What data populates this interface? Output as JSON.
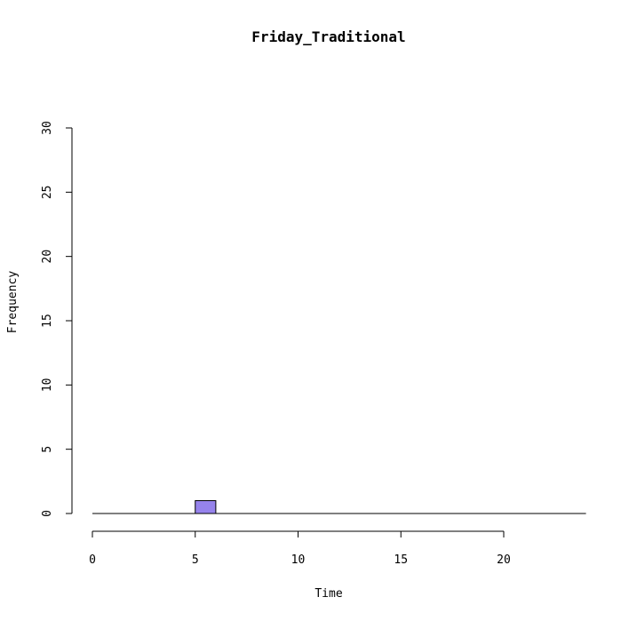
{
  "chart_data": {
    "type": "bar",
    "title": "Friday_Traditional",
    "xlabel": "Time",
    "ylabel": "Frequency",
    "xlim": [
      0,
      24
    ],
    "ylim": [
      0,
      30
    ],
    "x_ticks": [
      0,
      5,
      10,
      15,
      20
    ],
    "y_ticks": [
      0,
      5,
      10,
      15,
      20,
      25,
      30
    ],
    "bin_width": 1,
    "bins": [
      {
        "start": 0,
        "end": 1,
        "count": 0
      },
      {
        "start": 1,
        "end": 2,
        "count": 0
      },
      {
        "start": 2,
        "end": 3,
        "count": 0
      },
      {
        "start": 3,
        "end": 4,
        "count": 0
      },
      {
        "start": 4,
        "end": 5,
        "count": 0
      },
      {
        "start": 5,
        "end": 6,
        "count": 1
      },
      {
        "start": 6,
        "end": 7,
        "count": 0
      },
      {
        "start": 7,
        "end": 8,
        "count": 0
      },
      {
        "start": 8,
        "end": 9,
        "count": 0
      },
      {
        "start": 9,
        "end": 10,
        "count": 0
      },
      {
        "start": 10,
        "end": 11,
        "count": 0
      },
      {
        "start": 11,
        "end": 12,
        "count": 0
      },
      {
        "start": 12,
        "end": 13,
        "count": 0
      },
      {
        "start": 13,
        "end": 14,
        "count": 0
      },
      {
        "start": 14,
        "end": 15,
        "count": 0
      },
      {
        "start": 15,
        "end": 16,
        "count": 0
      },
      {
        "start": 16,
        "end": 17,
        "count": 0
      },
      {
        "start": 17,
        "end": 18,
        "count": 0
      },
      {
        "start": 18,
        "end": 19,
        "count": 0
      },
      {
        "start": 19,
        "end": 20,
        "count": 0
      },
      {
        "start": 20,
        "end": 21,
        "count": 0
      },
      {
        "start": 21,
        "end": 22,
        "count": 0
      },
      {
        "start": 22,
        "end": 23,
        "count": 0
      },
      {
        "start": 23,
        "end": 24,
        "count": 0
      }
    ],
    "bar_color": "#9683EC",
    "grid": false,
    "legend": "none"
  }
}
